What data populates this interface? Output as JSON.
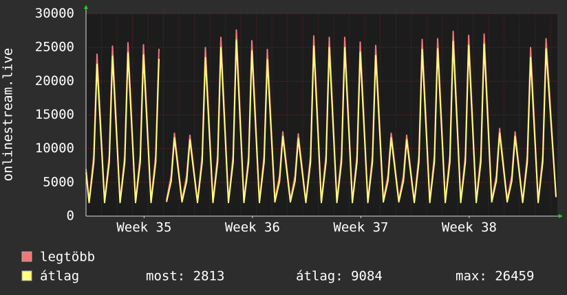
{
  "chart_data": {
    "type": "line",
    "y_label": "onlinestream.live",
    "xlim": [
      0,
      30.44
    ],
    "xticks": [
      {
        "value": 3.75,
        "label": "Week 35"
      },
      {
        "value": 10.75,
        "label": "Week 36"
      },
      {
        "value": 17.75,
        "label": "Week 37"
      },
      {
        "value": 24.75,
        "label": "Week 38"
      }
    ],
    "ylim": [
      0,
      30000
    ],
    "yticks": [
      0,
      5000,
      10000,
      15000,
      20000,
      25000,
      30000
    ],
    "grid": true,
    "x": [
      0,
      0.2,
      0.5,
      0.71,
      1.2,
      1.5,
      1.71,
      2.2,
      2.5,
      2.71,
      3.2,
      3.5,
      3.71,
      4.2,
      4.5,
      4.71,
      4.95,
      5.2,
      5.5,
      5.71,
      6.2,
      6.5,
      6.71,
      7.2,
      7.5,
      7.71,
      8.2,
      8.5,
      8.71,
      9.2,
      9.5,
      9.71,
      10.2,
      10.5,
      10.71,
      11.2,
      11.5,
      11.71,
      12.2,
      12.5,
      12.71,
      13.2,
      13.5,
      13.71,
      14.2,
      14.5,
      14.71,
      15.2,
      15.5,
      15.71,
      16.2,
      16.5,
      16.71,
      17.2,
      17.5,
      17.71,
      18.2,
      18.5,
      18.71,
      19.2,
      19.5,
      19.71,
      20.2,
      20.5,
      20.71,
      21.2,
      21.5,
      21.71,
      22.2,
      22.5,
      22.71,
      23.2,
      23.5,
      23.71,
      24.2,
      24.5,
      24.71,
      25.2,
      25.5,
      25.71,
      26.2,
      26.5,
      26.71,
      27.2,
      27.5,
      27.71,
      28.2,
      28.5,
      28.71,
      29.2,
      29.5,
      29.71,
      30.35
    ],
    "series": [
      {
        "name": "legtöbb",
        "color": "#f07878",
        "values": [
          7000,
          2200,
          9000,
          24000,
          2200,
          9000,
          25200,
          2200,
          9000,
          25700,
          2200,
          9000,
          25400,
          2200,
          9000,
          24800,
          null,
          2400,
          6000,
          12300,
          2400,
          6000,
          12000,
          2200,
          9000,
          25000,
          2200,
          9000,
          26500,
          2200,
          9000,
          27600,
          2200,
          9000,
          26000,
          2200,
          9000,
          24700,
          2400,
          6000,
          12500,
          2400,
          6000,
          12200,
          2200,
          9000,
          26700,
          2200,
          9000,
          26500,
          2200,
          9000,
          26500,
          2200,
          9000,
          25800,
          2200,
          9000,
          25300,
          2400,
          6000,
          12300,
          2400,
          6000,
          12000,
          2200,
          9000,
          26200,
          2200,
          9000,
          26300,
          2200,
          9000,
          27400,
          2200,
          9000,
          26800,
          2200,
          9000,
          27000,
          2400,
          6000,
          13000,
          2400,
          6000,
          12500,
          2200,
          9000,
          25000,
          2200,
          9000,
          26300,
          3000
        ]
      },
      {
        "name": "átlag",
        "color": "#ffff80",
        "values": [
          6500,
          2000,
          8000,
          22500,
          2000,
          8000,
          23700,
          2000,
          8000,
          24200,
          2000,
          8000,
          23900,
          2000,
          8000,
          23300,
          null,
          2100,
          5200,
          11600,
          2100,
          5200,
          11300,
          2000,
          8000,
          23500,
          2000,
          8000,
          25000,
          2000,
          8000,
          26100,
          2000,
          8000,
          24500,
          2000,
          8000,
          23200,
          2100,
          5200,
          11800,
          2100,
          5200,
          11500,
          2000,
          8000,
          25200,
          2000,
          8000,
          25000,
          2000,
          8000,
          25000,
          2000,
          8000,
          24300,
          2000,
          8000,
          23800,
          2100,
          5200,
          11600,
          2100,
          5200,
          11300,
          2000,
          8000,
          24700,
          2000,
          8000,
          24800,
          2000,
          8000,
          25900,
          2000,
          8000,
          25300,
          2000,
          8000,
          25500,
          2100,
          5200,
          12300,
          2100,
          5200,
          11800,
          2000,
          8000,
          23500,
          2000,
          8000,
          24800,
          2813
        ]
      }
    ],
    "stats": [
      "most: 2813",
      "átlag: 9084",
      "max: 26459"
    ]
  }
}
